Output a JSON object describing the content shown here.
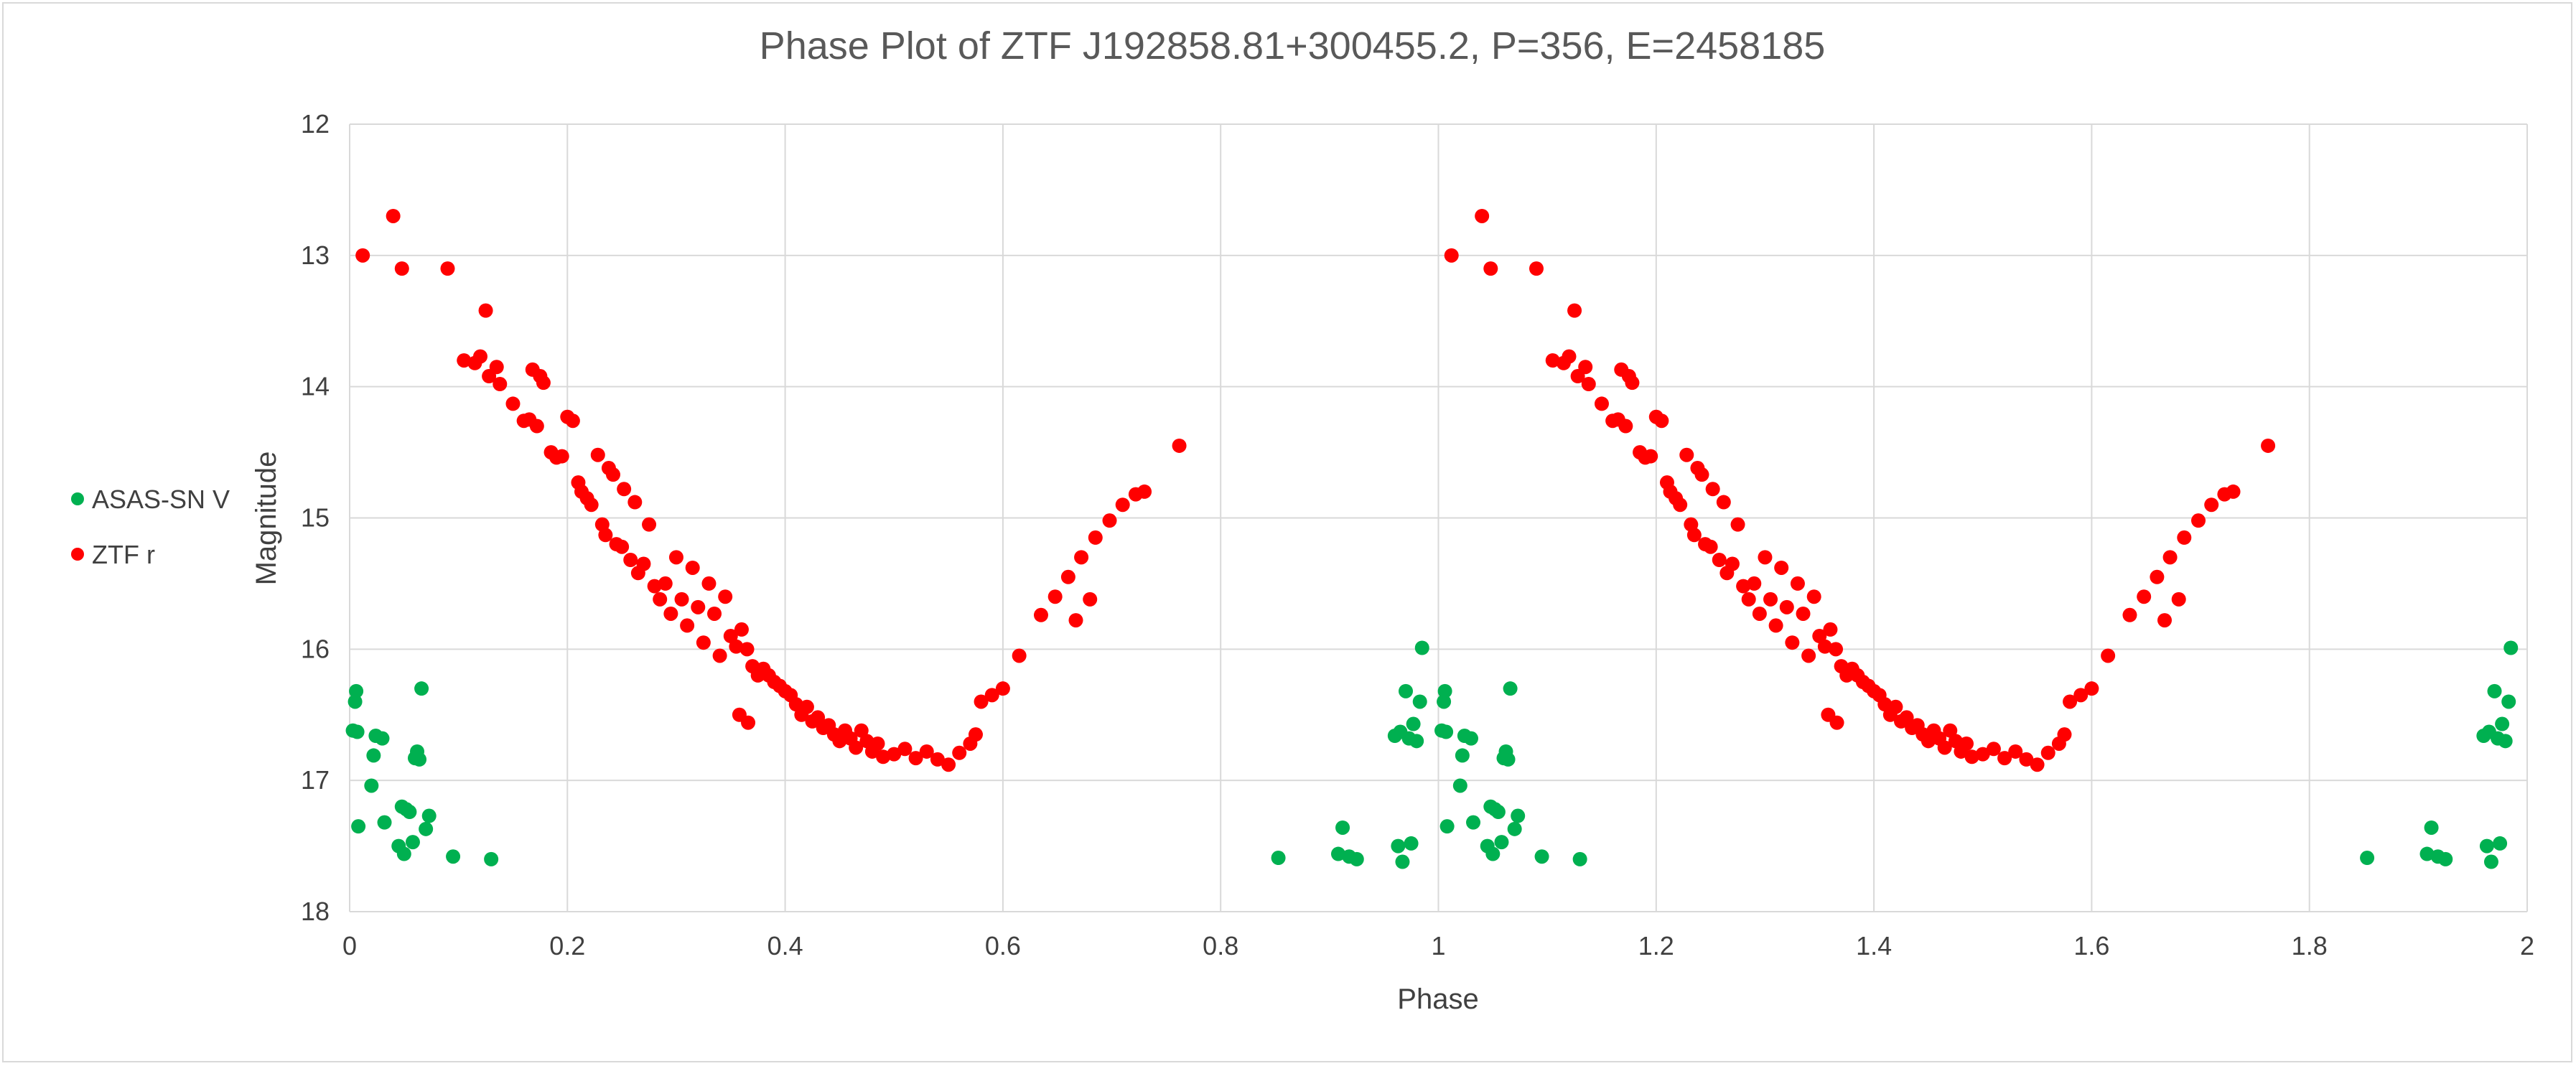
{
  "chart_data": {
    "type": "scatter",
    "title": "Phase Plot of ZTF J192858.81+300455.2, P=356, E=2458185",
    "xlabel": "Phase",
    "ylabel": "Magnitude",
    "xlim": [
      0,
      2
    ],
    "ylim": [
      12,
      18
    ],
    "y_reversed": true,
    "x_ticks": [
      "0",
      "0.2",
      "0.4",
      "0.6",
      "0.8",
      "1",
      "1.2",
      "1.4",
      "1.6",
      "1.8",
      "2"
    ],
    "y_ticks": [
      "12",
      "13",
      "14",
      "15",
      "16",
      "17",
      "18"
    ],
    "grid": true,
    "legend_position": "left",
    "series": [
      {
        "name": "ASAS-SN V",
        "color": "#00b050",
        "base_points": [
          [
            0.003,
            16.62
          ],
          [
            0.005,
            16.4
          ],
          [
            0.006,
            16.32
          ],
          [
            0.007,
            16.63
          ],
          [
            0.008,
            17.35
          ],
          [
            0.02,
            17.04
          ],
          [
            0.022,
            16.81
          ],
          [
            0.024,
            16.66
          ],
          [
            0.03,
            16.68
          ],
          [
            0.032,
            17.32
          ],
          [
            0.045,
            17.5
          ],
          [
            0.048,
            17.2
          ],
          [
            0.05,
            17.56
          ],
          [
            0.052,
            17.22
          ],
          [
            0.055,
            17.24
          ],
          [
            0.058,
            17.47
          ],
          [
            0.06,
            16.83
          ],
          [
            0.062,
            16.78
          ],
          [
            0.064,
            16.84
          ],
          [
            0.066,
            16.3
          ],
          [
            0.07,
            17.37
          ],
          [
            0.073,
            17.27
          ],
          [
            0.095,
            17.58
          ],
          [
            0.13,
            17.6
          ],
          [
            0.853,
            17.59
          ],
          [
            0.908,
            17.56
          ],
          [
            0.912,
            17.36
          ],
          [
            0.918,
            17.58
          ],
          [
            0.925,
            17.6
          ],
          [
            0.96,
            16.66
          ],
          [
            0.963,
            17.5
          ],
          [
            0.965,
            16.63
          ],
          [
            0.967,
            17.62
          ],
          [
            0.97,
            16.32
          ],
          [
            0.973,
            16.68
          ],
          [
            0.975,
            17.48
          ],
          [
            0.977,
            16.57
          ],
          [
            0.98,
            16.7
          ],
          [
            0.983,
            16.4
          ],
          [
            0.985,
            15.99
          ]
        ]
      },
      {
        "name": "ZTF r",
        "color": "#ff0000",
        "base_points": [
          [
            0.012,
            13.0
          ],
          [
            0.04,
            12.7
          ],
          [
            0.048,
            13.1
          ],
          [
            0.09,
            13.1
          ],
          [
            0.105,
            13.8
          ],
          [
            0.115,
            13.82
          ],
          [
            0.12,
            13.77
          ],
          [
            0.125,
            13.42
          ],
          [
            0.128,
            13.92
          ],
          [
            0.135,
            13.85
          ],
          [
            0.138,
            13.98
          ],
          [
            0.15,
            14.13
          ],
          [
            0.16,
            14.26
          ],
          [
            0.165,
            14.25
          ],
          [
            0.168,
            13.87
          ],
          [
            0.172,
            14.3
          ],
          [
            0.175,
            13.92
          ],
          [
            0.178,
            13.97
          ],
          [
            0.185,
            14.5
          ],
          [
            0.19,
            14.54
          ],
          [
            0.195,
            14.53
          ],
          [
            0.2,
            14.23
          ],
          [
            0.205,
            14.26
          ],
          [
            0.21,
            14.73
          ],
          [
            0.213,
            14.8
          ],
          [
            0.218,
            14.85
          ],
          [
            0.222,
            14.9
          ],
          [
            0.228,
            14.52
          ],
          [
            0.232,
            15.05
          ],
          [
            0.235,
            15.13
          ],
          [
            0.238,
            14.62
          ],
          [
            0.242,
            14.67
          ],
          [
            0.245,
            15.2
          ],
          [
            0.25,
            15.22
          ],
          [
            0.252,
            14.78
          ],
          [
            0.258,
            15.32
          ],
          [
            0.262,
            14.88
          ],
          [
            0.265,
            15.42
          ],
          [
            0.27,
            15.35
          ],
          [
            0.275,
            15.05
          ],
          [
            0.28,
            15.52
          ],
          [
            0.285,
            15.62
          ],
          [
            0.29,
            15.5
          ],
          [
            0.295,
            15.73
          ],
          [
            0.3,
            15.3
          ],
          [
            0.305,
            15.62
          ],
          [
            0.31,
            15.82
          ],
          [
            0.315,
            15.38
          ],
          [
            0.32,
            15.68
          ],
          [
            0.325,
            15.95
          ],
          [
            0.33,
            15.5
          ],
          [
            0.335,
            15.73
          ],
          [
            0.34,
            16.05
          ],
          [
            0.345,
            15.6
          ],
          [
            0.35,
            15.9
          ],
          [
            0.355,
            15.98
          ],
          [
            0.36,
            15.85
          ],
          [
            0.365,
            16.0
          ],
          [
            0.37,
            16.13
          ],
          [
            0.375,
            16.2
          ],
          [
            0.38,
            16.15
          ],
          [
            0.385,
            16.2
          ],
          [
            0.39,
            16.25
          ],
          [
            0.395,
            16.28
          ],
          [
            0.4,
            16.32
          ],
          [
            0.405,
            16.35
          ],
          [
            0.41,
            16.42
          ],
          [
            0.415,
            16.5
          ],
          [
            0.42,
            16.44
          ],
          [
            0.425,
            16.55
          ],
          [
            0.43,
            16.52
          ],
          [
            0.435,
            16.6
          ],
          [
            0.44,
            16.58
          ],
          [
            0.445,
            16.65
          ],
          [
            0.45,
            16.7
          ],
          [
            0.455,
            16.62
          ],
          [
            0.46,
            16.68
          ],
          [
            0.465,
            16.75
          ],
          [
            0.47,
            16.62
          ],
          [
            0.475,
            16.7
          ],
          [
            0.48,
            16.78
          ],
          [
            0.485,
            16.72
          ],
          [
            0.49,
            16.82
          ],
          [
            0.5,
            16.8
          ],
          [
            0.51,
            16.76
          ],
          [
            0.52,
            16.83
          ],
          [
            0.53,
            16.78
          ],
          [
            0.54,
            16.84
          ],
          [
            0.55,
            16.88
          ],
          [
            0.56,
            16.79
          ],
          [
            0.57,
            16.72
          ],
          [
            0.575,
            16.65
          ],
          [
            0.58,
            16.4
          ],
          [
            0.59,
            16.35
          ],
          [
            0.6,
            16.3
          ],
          [
            0.615,
            16.05
          ],
          [
            0.635,
            15.74
          ],
          [
            0.648,
            15.6
          ],
          [
            0.66,
            15.45
          ],
          [
            0.672,
            15.3
          ],
          [
            0.685,
            15.15
          ],
          [
            0.698,
            15.02
          ],
          [
            0.71,
            14.9
          ],
          [
            0.722,
            14.82
          ],
          [
            0.73,
            14.8
          ],
          [
            0.762,
            14.45
          ],
          [
            0.358,
            16.5
          ],
          [
            0.366,
            16.56
          ],
          [
            0.667,
            15.78
          ],
          [
            0.68,
            15.62
          ]
        ]
      }
    ]
  }
}
